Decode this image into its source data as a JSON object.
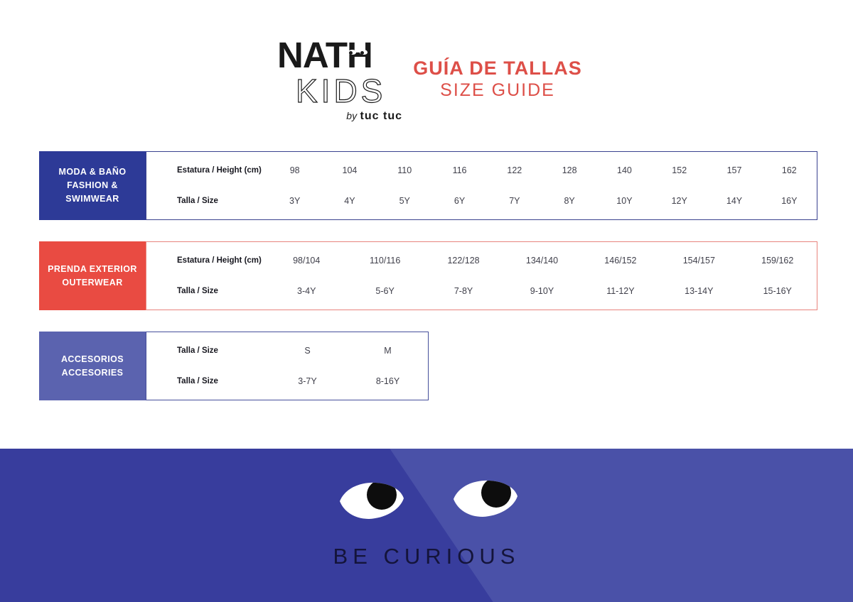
{
  "logo": {
    "name_head": "NAT",
    "name_tail": "H",
    "sub": "KIDS",
    "byline_by": "by",
    "byline_brand": "tuc tuc"
  },
  "header": {
    "title_es": "GUÍA DE TALLAS",
    "title_en": "SIZE GUIDE",
    "accent_color": "#dd4f48"
  },
  "tables": [
    {
      "id": "fashion-swimwear",
      "label_line1": "MODA & BAÑO",
      "label_line2": "FASHION & SWIMWEAR",
      "box_color": "#2d3a97",
      "border_color": "#39418f",
      "narrow": false,
      "rows": [
        {
          "label": "Estatura / Height (cm)",
          "values": [
            "98",
            "104",
            "110",
            "116",
            "122",
            "128",
            "140",
            "152",
            "157",
            "162"
          ]
        },
        {
          "label": "Talla / Size",
          "values": [
            "3Y",
            "4Y",
            "5Y",
            "6Y",
            "7Y",
            "8Y",
            "10Y",
            "12Y",
            "14Y",
            "16Y"
          ]
        }
      ]
    },
    {
      "id": "outerwear",
      "label_line1": "PRENDA EXTERIOR",
      "label_line2": "OUTERWEAR",
      "box_color": "#e94b42",
      "border_color": "#e8847d",
      "narrow": false,
      "rows": [
        {
          "label": "Estatura / Height (cm)",
          "values": [
            "98/104",
            "110/116",
            "122/128",
            "134/140",
            "146/152",
            "154/157",
            "159/162"
          ]
        },
        {
          "label": "Talla / Size",
          "values": [
            "3-4Y",
            "5-6Y",
            "7-8Y",
            "9-10Y",
            "11-12Y",
            "13-14Y",
            "15-16Y"
          ]
        }
      ]
    },
    {
      "id": "accessories",
      "label_line1": "ACCESORIOS",
      "label_line2": "ACCESORIES",
      "box_color": "#5b63af",
      "border_color": "#464f9b",
      "narrow": true,
      "rows": [
        {
          "label": "Talla / Size",
          "values": [
            "S",
            "M"
          ]
        },
        {
          "label": "Talla / Size",
          "values": [
            "3-7Y",
            "8-16Y"
          ]
        }
      ]
    }
  ],
  "banner": {
    "text": "BE CURIOUS",
    "bg_dark": "#383d9d",
    "bg_light": "#4a51a8",
    "text_color": "#14143a",
    "eye_white": "#ffffff",
    "pupil_color": "#0d0d0d"
  }
}
